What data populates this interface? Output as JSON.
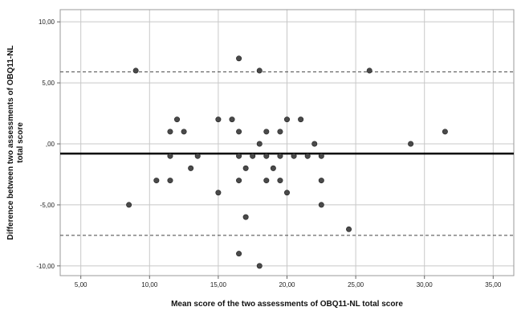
{
  "chart_data": {
    "type": "scatter",
    "title": "",
    "xlabel": "Mean score of the two assessments of OBQ11-NL total score",
    "ylabel": [
      "Difference between two assessments of OBQ11-NL",
      "total score"
    ],
    "xlim": [
      3.5,
      36.5
    ],
    "ylim": [
      -10.8,
      11
    ],
    "x_ticks": [
      5,
      10,
      15,
      20,
      25,
      30,
      35
    ],
    "x_tick_labels": [
      "5,00",
      "10,00",
      "15,00",
      "20,00",
      "25,00",
      "30,00",
      "35,00"
    ],
    "y_ticks": [
      -10,
      -5,
      0,
      5,
      10
    ],
    "y_tick_labels": [
      "-10,00",
      "-5,00",
      ",00",
      "5,00",
      "10,00"
    ],
    "grid": true,
    "mean_difference": -0.8,
    "limits_of_agreement": [
      5.9,
      -7.5
    ],
    "point_color": "#4a4a4a",
    "points": [
      {
        "x": 8.5,
        "y": -5
      },
      {
        "x": 9,
        "y": 6
      },
      {
        "x": 10.5,
        "y": -3
      },
      {
        "x": 11.5,
        "y": 1
      },
      {
        "x": 11.5,
        "y": -1
      },
      {
        "x": 11.5,
        "y": -3
      },
      {
        "x": 12,
        "y": 2
      },
      {
        "x": 12.5,
        "y": 1
      },
      {
        "x": 13,
        "y": -2
      },
      {
        "x": 13.5,
        "y": -1
      },
      {
        "x": 15,
        "y": 2
      },
      {
        "x": 15,
        "y": -4
      },
      {
        "x": 16,
        "y": 2
      },
      {
        "x": 16.5,
        "y": 7
      },
      {
        "x": 16.5,
        "y": 1
      },
      {
        "x": 16.5,
        "y": -1
      },
      {
        "x": 16.5,
        "y": -3
      },
      {
        "x": 16.5,
        "y": -9
      },
      {
        "x": 17,
        "y": -2
      },
      {
        "x": 17,
        "y": -6
      },
      {
        "x": 17.5,
        "y": -1
      },
      {
        "x": 18,
        "y": 6
      },
      {
        "x": 18,
        "y": 0
      },
      {
        "x": 18,
        "y": -10
      },
      {
        "x": 18.5,
        "y": 1
      },
      {
        "x": 18.5,
        "y": -1
      },
      {
        "x": 18.5,
        "y": -3
      },
      {
        "x": 19,
        "y": -2
      },
      {
        "x": 19.5,
        "y": 1
      },
      {
        "x": 19.5,
        "y": -1
      },
      {
        "x": 19.5,
        "y": -3
      },
      {
        "x": 20,
        "y": 2
      },
      {
        "x": 20,
        "y": -4
      },
      {
        "x": 20.5,
        "y": -1
      },
      {
        "x": 21,
        "y": 2
      },
      {
        "x": 21.5,
        "y": -1
      },
      {
        "x": 22,
        "y": 0
      },
      {
        "x": 22.5,
        "y": -1
      },
      {
        "x": 22.5,
        "y": -3
      },
      {
        "x": 22.5,
        "y": -5
      },
      {
        "x": 24.5,
        "y": -7
      },
      {
        "x": 26,
        "y": 6
      },
      {
        "x": 29,
        "y": 0
      },
      {
        "x": 31.5,
        "y": 1
      }
    ]
  }
}
